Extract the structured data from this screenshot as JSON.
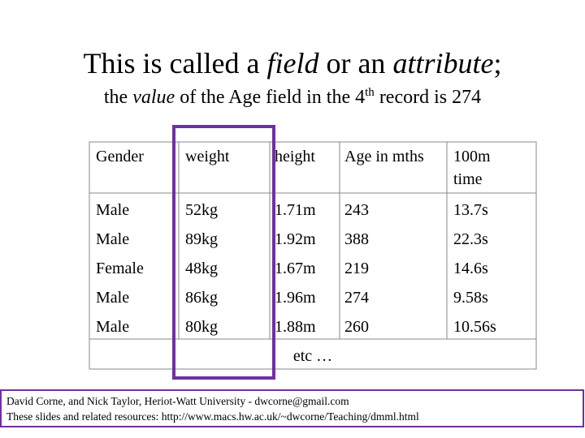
{
  "title": {
    "parts": [
      "This is called a ",
      "field",
      " or an ",
      "attribute",
      ";"
    ]
  },
  "subtitle": {
    "parts": [
      "the ",
      "value",
      " of the Age field in the 4",
      "th",
      " record is 274"
    ]
  },
  "table": {
    "header": [
      "Gender",
      "weight",
      "height",
      "Age in mths",
      "100m time"
    ],
    "rows": [
      [
        "Male",
        "52kg",
        "1.71m",
        "243",
        "13.7s"
      ],
      [
        "Male",
        "89kg",
        "1.92m",
        "388",
        "22.3s"
      ],
      [
        "Female",
        "48kg",
        "1.67m",
        "219",
        "14.6s"
      ],
      [
        "Male",
        "86kg",
        "1.96m",
        "274",
        "9.58s"
      ],
      [
        "Male",
        "80kg",
        "1.88m",
        "260",
        "10.56s"
      ]
    ],
    "footer": "etc …"
  },
  "footer": {
    "lines": [
      "David Corne, and Nick Taylor,  Heriot-Watt University  -  dwcorne@gmail.com",
      "These slides and related resources:   http://www.macs.hw.ac.uk/~dwcorne/Teaching/dmml.html"
    ]
  }
}
